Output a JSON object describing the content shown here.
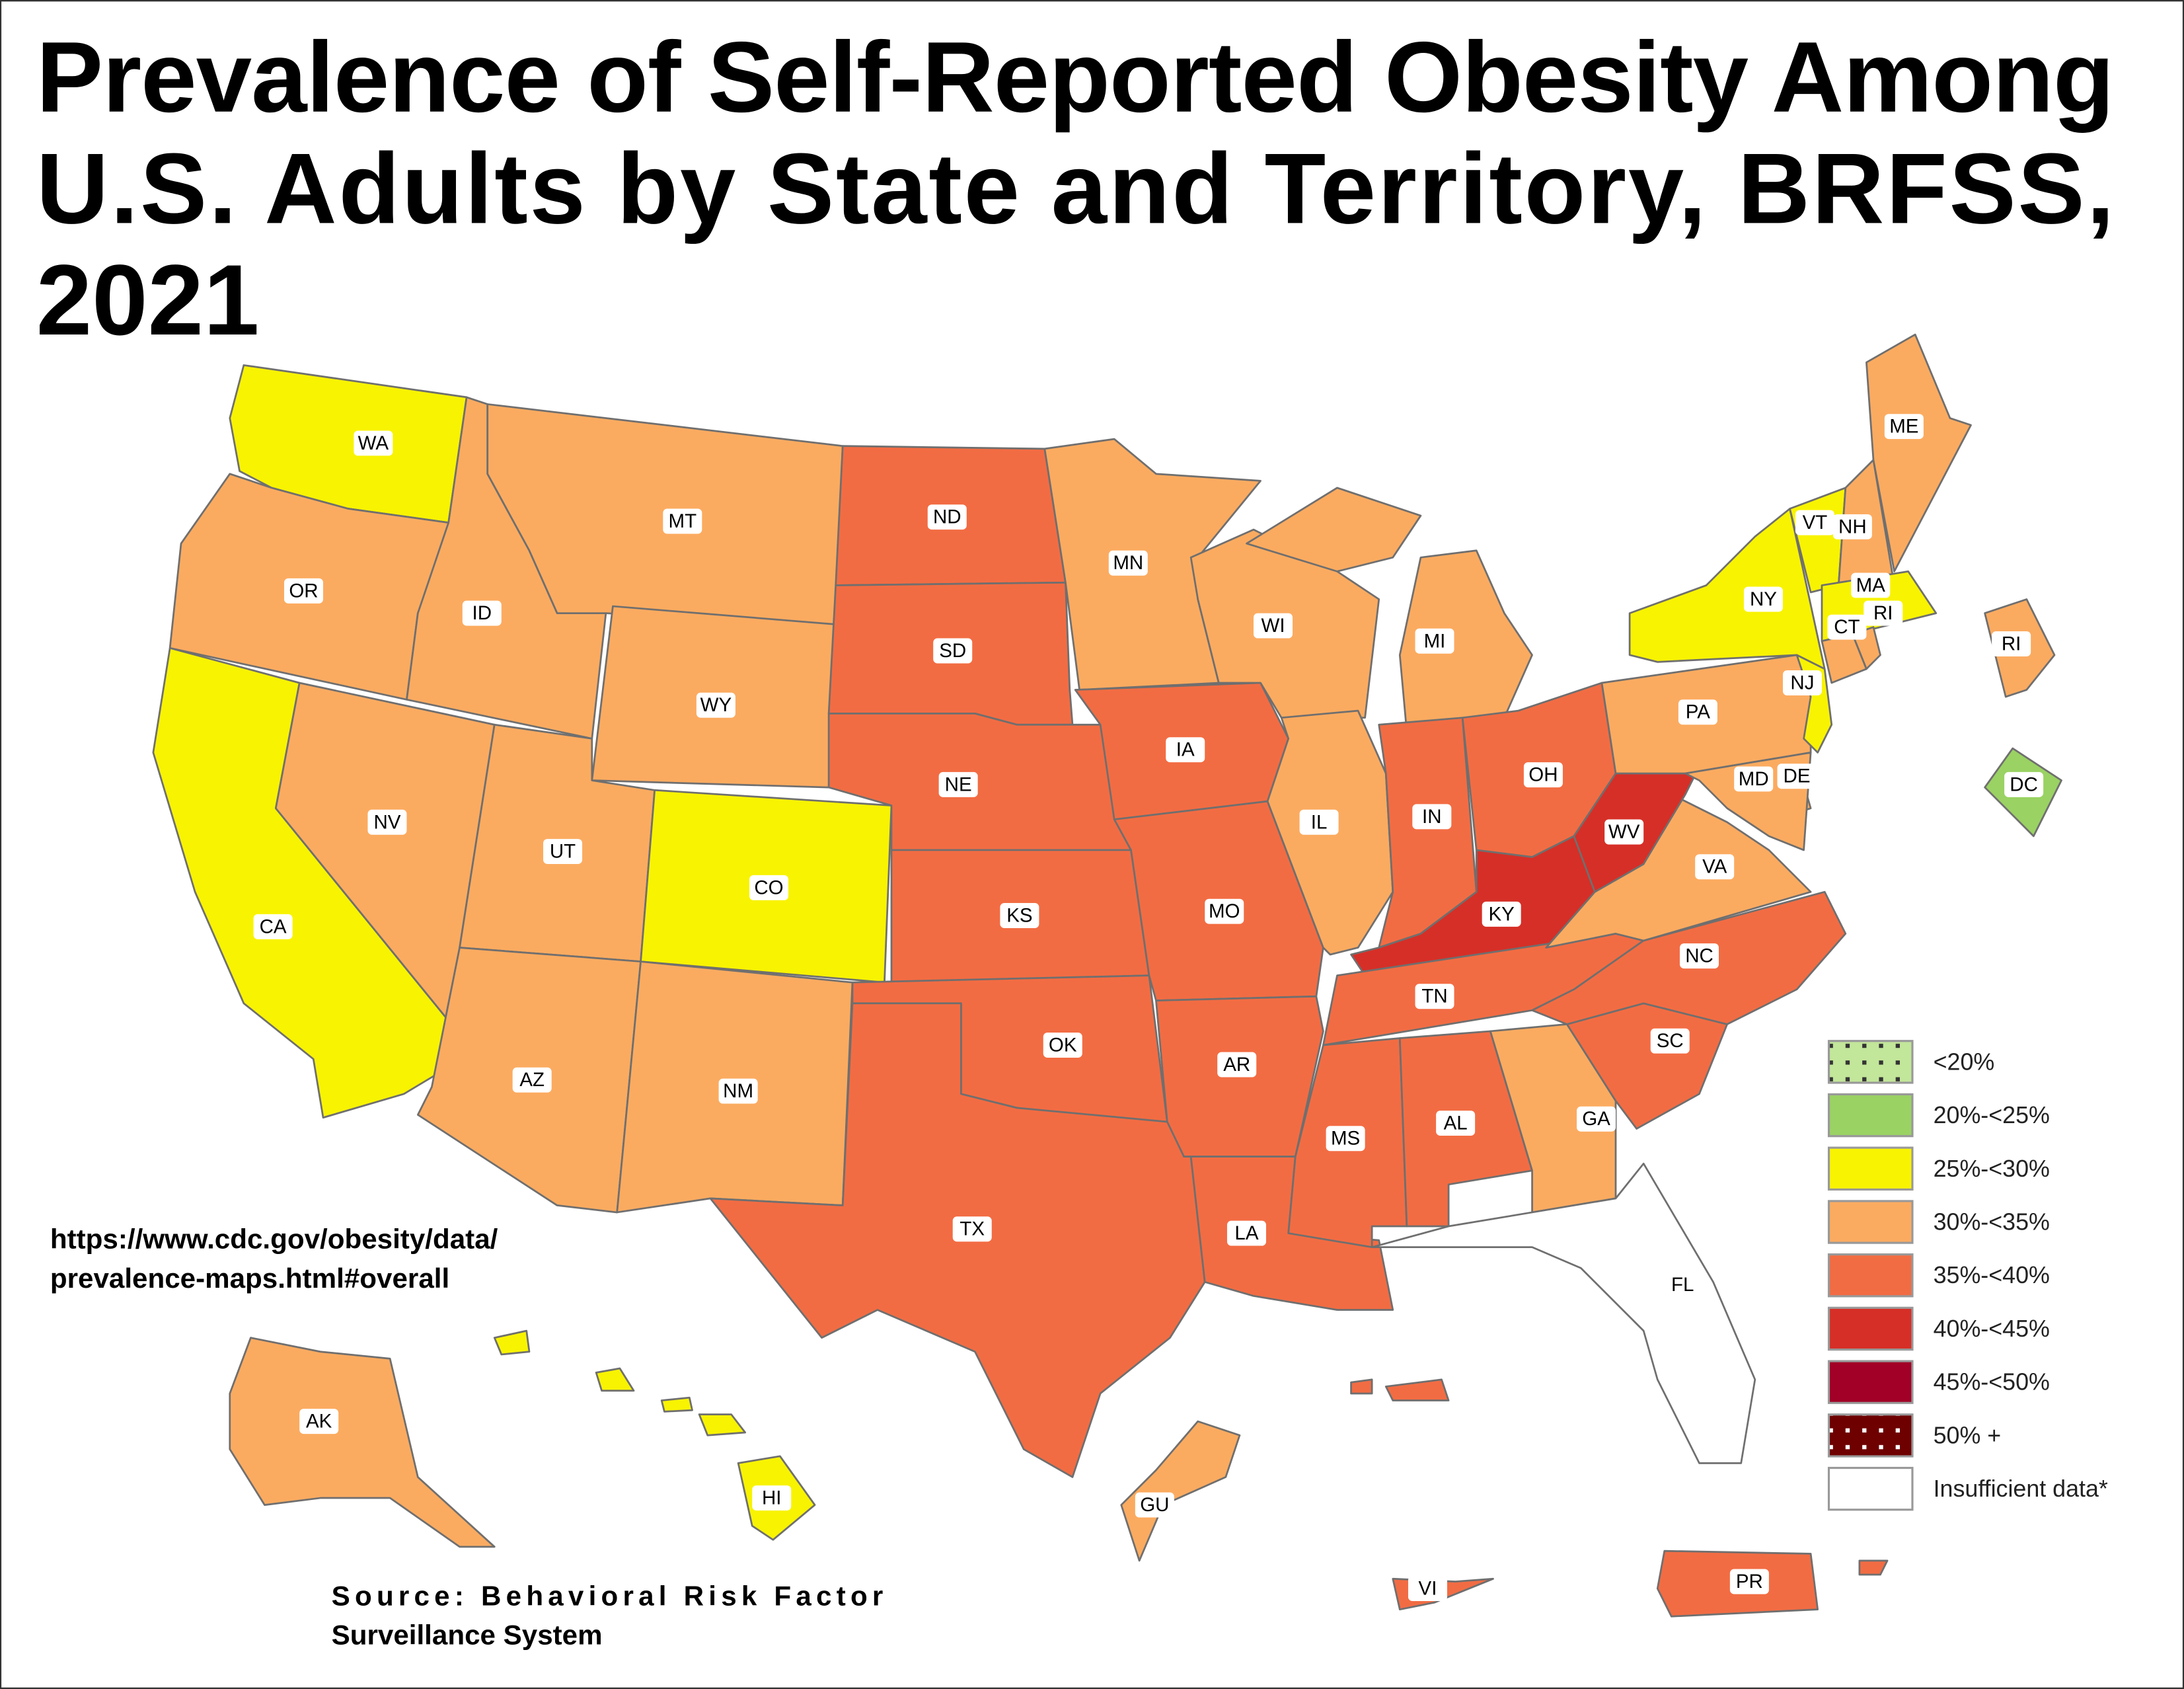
{
  "title": {
    "line1": "Prevalence of Self-Reported Obesity Among",
    "line2": "U.S. Adults by State and Territory, BRFSS,",
    "line3": "2021"
  },
  "url": {
    "line1": "https://www.cdc.gov/obesity/data/",
    "line2": "prevalence-maps.html#overall"
  },
  "source": {
    "line1": "Source: Behavioral Risk Factor",
    "line2": "Surveillance System"
  },
  "legend": [
    {
      "label": "<20%",
      "color": "#c2e69a",
      "pattern": "dots-dark"
    },
    {
      "label": "20%-<25%",
      "color": "#9ad263"
    },
    {
      "label": "25%-<30%",
      "color": "#f8f300"
    },
    {
      "label": "30%-<35%",
      "color": "#fbab60"
    },
    {
      "label": "35%-<40%",
      "color": "#f26c43"
    },
    {
      "label": "40%-<45%",
      "color": "#d62f27"
    },
    {
      "label": "45%-<50%",
      "color": "#a20026"
    },
    {
      "label": "50% +",
      "color": "#6e0000",
      "pattern": "dots-light"
    },
    {
      "label": "Insufficient data*",
      "color": "#ffffff"
    }
  ],
  "states": [
    {
      "abbr": "WA",
      "cat": 2
    },
    {
      "abbr": "OR",
      "cat": 3
    },
    {
      "abbr": "CA",
      "cat": 2
    },
    {
      "abbr": "NV",
      "cat": 3
    },
    {
      "abbr": "ID",
      "cat": 3
    },
    {
      "abbr": "MT",
      "cat": 3
    },
    {
      "abbr": "WY",
      "cat": 3
    },
    {
      "abbr": "UT",
      "cat": 3
    },
    {
      "abbr": "CO",
      "cat": 2
    },
    {
      "abbr": "AZ",
      "cat": 3
    },
    {
      "abbr": "NM",
      "cat": 3
    },
    {
      "abbr": "ND",
      "cat": 4
    },
    {
      "abbr": "SD",
      "cat": 4
    },
    {
      "abbr": "NE",
      "cat": 4
    },
    {
      "abbr": "KS",
      "cat": 4
    },
    {
      "abbr": "OK",
      "cat": 4
    },
    {
      "abbr": "TX",
      "cat": 4
    },
    {
      "abbr": "MN",
      "cat": 3
    },
    {
      "abbr": "IA",
      "cat": 4
    },
    {
      "abbr": "MO",
      "cat": 4
    },
    {
      "abbr": "AR",
      "cat": 4
    },
    {
      "abbr": "LA",
      "cat": 4
    },
    {
      "abbr": "WI",
      "cat": 3
    },
    {
      "abbr": "IL",
      "cat": 3
    },
    {
      "abbr": "MI",
      "cat": 3
    },
    {
      "abbr": "IN",
      "cat": 4
    },
    {
      "abbr": "OH",
      "cat": 4
    },
    {
      "abbr": "KY",
      "cat": 5
    },
    {
      "abbr": "TN",
      "cat": 4
    },
    {
      "abbr": "MS",
      "cat": 4
    },
    {
      "abbr": "AL",
      "cat": 4
    },
    {
      "abbr": "GA",
      "cat": 3
    },
    {
      "abbr": "FL",
      "cat": 8
    },
    {
      "abbr": "SC",
      "cat": 4
    },
    {
      "abbr": "NC",
      "cat": 4
    },
    {
      "abbr": "VA",
      "cat": 3
    },
    {
      "abbr": "WV",
      "cat": 5
    },
    {
      "abbr": "PA",
      "cat": 3
    },
    {
      "abbr": "NY",
      "cat": 2
    },
    {
      "abbr": "VT",
      "cat": 2
    },
    {
      "abbr": "NH",
      "cat": 3
    },
    {
      "abbr": "ME",
      "cat": 3
    },
    {
      "abbr": "MA",
      "cat": 2
    },
    {
      "abbr": "CT",
      "cat": 3
    },
    {
      "abbr": "RI",
      "cat": 3
    },
    {
      "abbr": "NJ",
      "cat": 2
    },
    {
      "abbr": "DE",
      "cat": 3
    },
    {
      "abbr": "MD",
      "cat": 3
    },
    {
      "abbr": "DC",
      "cat": 1
    },
    {
      "abbr": "AK",
      "cat": 3
    },
    {
      "abbr": "HI",
      "cat": 2
    },
    {
      "abbr": "GU",
      "cat": 3
    },
    {
      "abbr": "PR",
      "cat": 4
    },
    {
      "abbr": "VI",
      "cat": 4
    }
  ]
}
